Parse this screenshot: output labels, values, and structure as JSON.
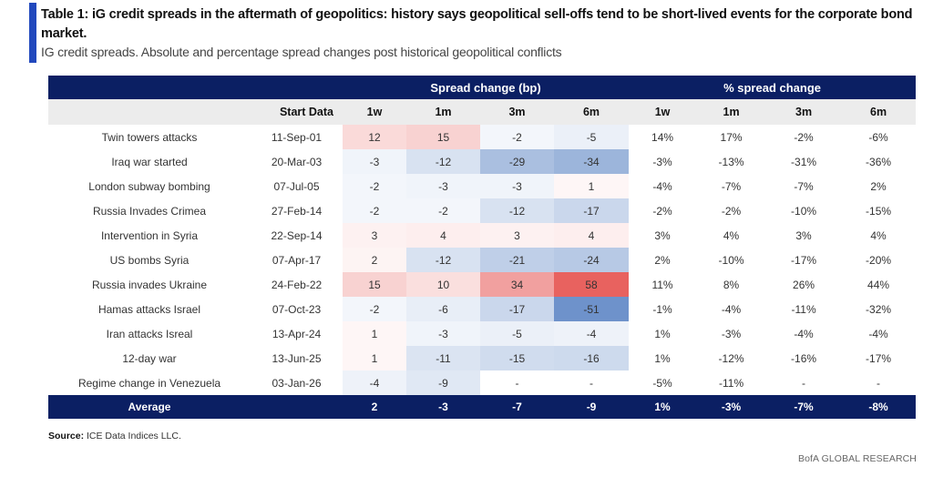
{
  "title": "Table 1: iG credit spreads in the aftermath of geopolitics: history says geopolitical sell-offs tend to be short-lived events for the corporate bond market.",
  "subtitle": "IG credit spreads. Absolute and percentage spread changes post historical geopolitical conflicts",
  "table": {
    "group_headers": {
      "spread_bp": "Spread change (bp)",
      "spread_pct": "% spread change"
    },
    "columns": [
      "",
      "Start Data",
      "1w",
      "1m",
      "3m",
      "6m",
      "1w",
      "1m",
      "3m",
      "6m"
    ],
    "rows": [
      {
        "event": "Twin towers attacks",
        "start": "11-Sep-01",
        "bp": [
          "12",
          "15",
          "-2",
          "-5"
        ],
        "pct": [
          "14%",
          "17%",
          "-2%",
          "-6%"
        ]
      },
      {
        "event": "Iraq war started",
        "start": "20-Mar-03",
        "bp": [
          "-3",
          "-12",
          "-29",
          "-34"
        ],
        "pct": [
          "-3%",
          "-13%",
          "-31%",
          "-36%"
        ]
      },
      {
        "event": "London subway bombing",
        "start": "07-Jul-05",
        "bp": [
          "-2",
          "-3",
          "-3",
          "1"
        ],
        "pct": [
          "-4%",
          "-7%",
          "-7%",
          "2%"
        ]
      },
      {
        "event": "Russia Invades Crimea",
        "start": "27-Feb-14",
        "bp": [
          "-2",
          "-2",
          "-12",
          "-17"
        ],
        "pct": [
          "-2%",
          "-2%",
          "-10%",
          "-15%"
        ]
      },
      {
        "event": "Intervention in Syria",
        "start": "22-Sep-14",
        "bp": [
          "3",
          "4",
          "3",
          "4"
        ],
        "pct": [
          "3%",
          "4%",
          "3%",
          "4%"
        ]
      },
      {
        "event": "US bombs Syria",
        "start": "07-Apr-17",
        "bp": [
          "2",
          "-12",
          "-21",
          "-24"
        ],
        "pct": [
          "2%",
          "-10%",
          "-17%",
          "-20%"
        ]
      },
      {
        "event": "Russia invades Ukraine",
        "start": "24-Feb-22",
        "bp": [
          "15",
          "10",
          "34",
          "58"
        ],
        "pct": [
          "11%",
          "8%",
          "26%",
          "44%"
        ]
      },
      {
        "event": "Hamas attacks Israel",
        "start": "07-Oct-23",
        "bp": [
          "-2",
          "-6",
          "-17",
          "-51"
        ],
        "pct": [
          "-1%",
          "-4%",
          "-11%",
          "-32%"
        ]
      },
      {
        "event": "Iran attacks Isreal",
        "start": "13-Apr-24",
        "bp": [
          "1",
          "-3",
          "-5",
          "-4"
        ],
        "pct": [
          "1%",
          "-3%",
          "-4%",
          "-4%"
        ]
      },
      {
        "event": "12-day war",
        "start": "13-Jun-25",
        "bp": [
          "1",
          "-11",
          "-15",
          "-16"
        ],
        "pct": [
          "1%",
          "-12%",
          "-16%",
          "-17%"
        ]
      },
      {
        "event": "Regime change in Venezuela",
        "start": "03-Jan-26",
        "bp": [
          "-4",
          "-9",
          "-",
          "-"
        ],
        "pct": [
          "-5%",
          "-11%",
          "-",
          "-"
        ]
      }
    ],
    "average": {
      "label": "Average",
      "bp": [
        "2",
        "-3",
        "-7",
        "-9"
      ],
      "pct": [
        "1%",
        "-3%",
        "-7%",
        "-8%"
      ]
    },
    "heatmap_colors": {
      "positive": "#e8625f",
      "negative": "#5b84c4",
      "neutral": "#ffffff",
      "max_abs_bp": 58
    }
  },
  "footer": {
    "source_label": "Source:",
    "source_text": " ICE Data Indices LLC.",
    "brand": "BofA GLOBAL RESEARCH"
  }
}
